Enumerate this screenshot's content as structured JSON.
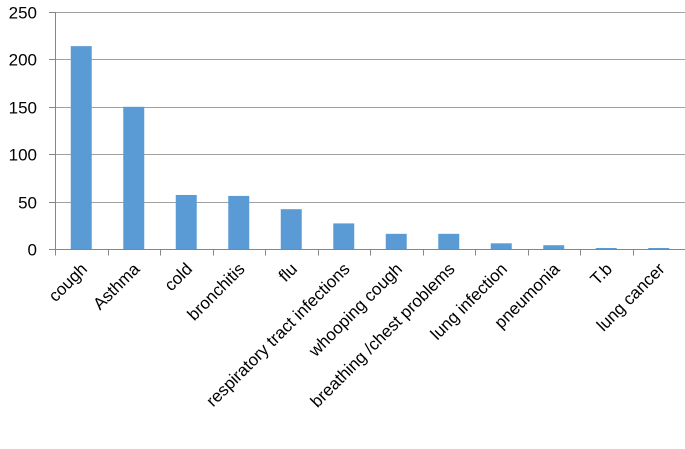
{
  "chart_data": {
    "type": "bar",
    "title": "",
    "xlabel": "",
    "ylabel": "",
    "categories": [
      "cough",
      "Asthma",
      "cold",
      "bronchitis",
      "flu",
      "respiratory tract infections",
      "whooping cough",
      "breathing /chest problems",
      "lung infection",
      "pneumonia",
      "T.b",
      "lung cancer"
    ],
    "values": [
      214,
      150,
      57,
      56,
      42,
      27,
      16,
      16,
      6,
      4,
      1,
      1
    ],
    "ylim": [
      0,
      250
    ],
    "yticks": [
      0,
      50,
      100,
      150,
      200,
      250
    ],
    "grid": true,
    "legend": "none",
    "bar_color": "#5b9bd5",
    "grid_color": "#a0a0a0",
    "axis_color": "#868686"
  }
}
